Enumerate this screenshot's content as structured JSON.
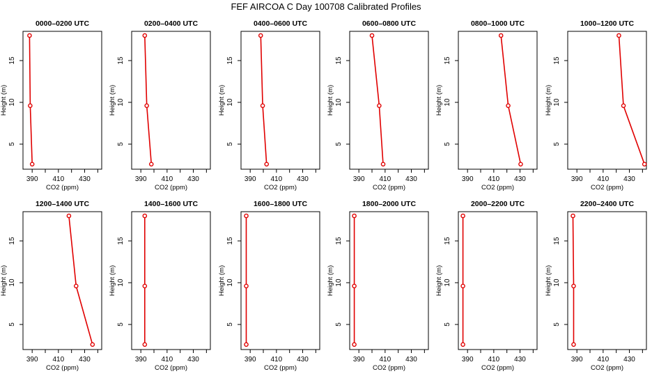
{
  "title": "FEF AIRCOA C  Day 100708  Calibrated Profiles",
  "colors": {
    "series": "#e00000",
    "axis": "#000000",
    "background": "#ffffff"
  },
  "chart_data": [
    {
      "type": "line",
      "title": "0000–0200 UTC",
      "xlabel": "CO2 (ppm)",
      "ylabel": "Height (m)",
      "xlim": [
        383,
        443
      ],
      "ylim": [
        2.0,
        18.5
      ],
      "xticks": [
        390,
        410,
        430
      ],
      "yticks": [
        5,
        10,
        15
      ],
      "points": [
        {
          "x": 388.0,
          "y": 18.0
        },
        {
          "x": 388.5,
          "y": 9.6
        },
        {
          "x": 390.0,
          "y": 2.6
        }
      ]
    },
    {
      "type": "line",
      "title": "0200–0400 UTC",
      "xlabel": "CO2 (ppm)",
      "ylabel": "Height (m)",
      "xlim": [
        383,
        443
      ],
      "ylim": [
        2.0,
        18.5
      ],
      "xticks": [
        390,
        410,
        430
      ],
      "yticks": [
        5,
        10,
        15
      ],
      "points": [
        {
          "x": 393.0,
          "y": 18.0
        },
        {
          "x": 394.5,
          "y": 9.6
        },
        {
          "x": 398.0,
          "y": 2.6
        }
      ]
    },
    {
      "type": "line",
      "title": "0400–0600 UTC",
      "xlabel": "CO2 (ppm)",
      "ylabel": "Height (m)",
      "xlim": [
        383,
        443
      ],
      "ylim": [
        2.0,
        18.5
      ],
      "xticks": [
        390,
        410,
        430
      ],
      "yticks": [
        5,
        10,
        15
      ],
      "points": [
        {
          "x": 398.0,
          "y": 18.0
        },
        {
          "x": 399.5,
          "y": 9.6
        },
        {
          "x": 402.5,
          "y": 2.6
        }
      ]
    },
    {
      "type": "line",
      "title": "0600–0800 UTC",
      "xlabel": "CO2 (ppm)",
      "ylabel": "Height (m)",
      "xlim": [
        383,
        443
      ],
      "ylim": [
        2.0,
        18.5
      ],
      "xticks": [
        390,
        410,
        430
      ],
      "yticks": [
        5,
        10,
        15
      ],
      "points": [
        {
          "x": 400.0,
          "y": 18.0
        },
        {
          "x": 405.5,
          "y": 9.6
        },
        {
          "x": 408.5,
          "y": 2.6
        }
      ]
    },
    {
      "type": "line",
      "title": "0800–1000 UTC",
      "xlabel": "CO2 (ppm)",
      "ylabel": "Height (m)",
      "xlim": [
        383,
        443
      ],
      "ylim": [
        2.0,
        18.5
      ],
      "xticks": [
        390,
        410,
        430
      ],
      "yticks": [
        5,
        10,
        15
      ],
      "points": [
        {
          "x": 415.5,
          "y": 18.0
        },
        {
          "x": 421.0,
          "y": 9.6
        },
        {
          "x": 430.5,
          "y": 2.6
        }
      ]
    },
    {
      "type": "line",
      "title": "1000–1200 UTC",
      "xlabel": "CO2 (ppm)",
      "ylabel": "Height (m)",
      "xlim": [
        383,
        443
      ],
      "ylim": [
        2.0,
        18.5
      ],
      "xticks": [
        390,
        410,
        430
      ],
      "yticks": [
        5,
        10,
        15
      ],
      "points": [
        {
          "x": 422.0,
          "y": 18.0
        },
        {
          "x": 425.5,
          "y": 9.6
        },
        {
          "x": 441.5,
          "y": 2.6
        }
      ]
    },
    {
      "type": "line",
      "title": "1200–1400 UTC",
      "xlabel": "CO2 (ppm)",
      "ylabel": "Height (m)",
      "xlim": [
        383,
        443
      ],
      "ylim": [
        2.0,
        18.5
      ],
      "xticks": [
        390,
        410,
        430
      ],
      "yticks": [
        5,
        10,
        15
      ],
      "points": [
        {
          "x": 418.0,
          "y": 18.0
        },
        {
          "x": 423.5,
          "y": 9.6
        },
        {
          "x": 436.0,
          "y": 2.6
        }
      ]
    },
    {
      "type": "line",
      "title": "1400–1600 UTC",
      "xlabel": "CO2 (ppm)",
      "ylabel": "Height (m)",
      "xlim": [
        383,
        443
      ],
      "ylim": [
        2.0,
        18.5
      ],
      "xticks": [
        390,
        410,
        430
      ],
      "yticks": [
        5,
        10,
        15
      ],
      "points": [
        {
          "x": 393.0,
          "y": 18.0
        },
        {
          "x": 393.0,
          "y": 9.6
        },
        {
          "x": 393.0,
          "y": 2.6
        }
      ]
    },
    {
      "type": "line",
      "title": "1600–1800 UTC",
      "xlabel": "CO2 (ppm)",
      "ylabel": "Height (m)",
      "xlim": [
        383,
        443
      ],
      "ylim": [
        2.0,
        18.5
      ],
      "xticks": [
        390,
        410,
        430
      ],
      "yticks": [
        5,
        10,
        15
      ],
      "points": [
        {
          "x": 387.0,
          "y": 18.0
        },
        {
          "x": 387.0,
          "y": 9.6
        },
        {
          "x": 387.0,
          "y": 2.6
        }
      ]
    },
    {
      "type": "line",
      "title": "1800–2000 UTC",
      "xlabel": "CO2 (ppm)",
      "ylabel": "Height (m)",
      "xlim": [
        383,
        443
      ],
      "ylim": [
        2.0,
        18.5
      ],
      "xticks": [
        390,
        410,
        430
      ],
      "yticks": [
        5,
        10,
        15
      ],
      "points": [
        {
          "x": 386.5,
          "y": 18.0
        },
        {
          "x": 386.5,
          "y": 9.6
        },
        {
          "x": 386.5,
          "y": 2.6
        }
      ]
    },
    {
      "type": "line",
      "title": "2000–2200 UTC",
      "xlabel": "CO2 (ppm)",
      "ylabel": "Height (m)",
      "xlim": [
        383,
        443
      ],
      "ylim": [
        2.0,
        18.5
      ],
      "xticks": [
        390,
        410,
        430
      ],
      "yticks": [
        5,
        10,
        15
      ],
      "points": [
        {
          "x": 386.5,
          "y": 18.0
        },
        {
          "x": 386.5,
          "y": 9.6
        },
        {
          "x": 386.5,
          "y": 2.6
        }
      ]
    },
    {
      "type": "line",
      "title": "2200–2400 UTC",
      "xlabel": "CO2 (ppm)",
      "ylabel": "Height (m)",
      "xlim": [
        383,
        443
      ],
      "ylim": [
        2.0,
        18.5
      ],
      "xticks": [
        390,
        410,
        430
      ],
      "yticks": [
        5,
        10,
        15
      ],
      "points": [
        {
          "x": 387.0,
          "y": 18.0
        },
        {
          "x": 387.5,
          "y": 9.6
        },
        {
          "x": 387.5,
          "y": 2.6
        }
      ]
    }
  ]
}
